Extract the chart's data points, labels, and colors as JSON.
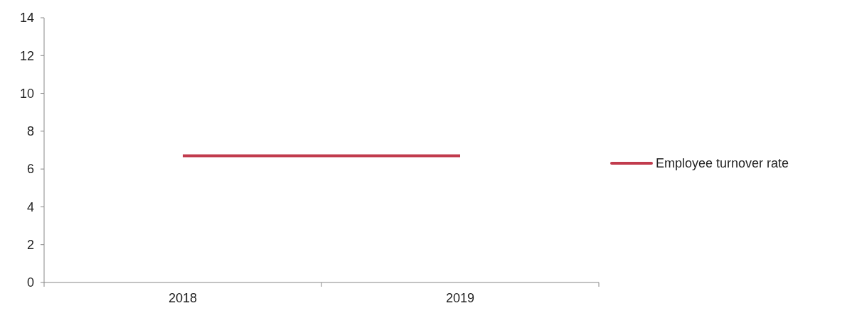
{
  "chart_data": {
    "type": "line",
    "categories": [
      "2018",
      "2019"
    ],
    "series": [
      {
        "name": "Employee turnover rate",
        "color": "#c13b4d",
        "values": [
          6.7,
          6.7
        ]
      }
    ],
    "ylim": [
      0,
      14
    ],
    "yticks": [
      0,
      2,
      4,
      6,
      8,
      10,
      12,
      14
    ],
    "grid": false,
    "legend": "right",
    "marker": "none",
    "line_style": "solid"
  }
}
